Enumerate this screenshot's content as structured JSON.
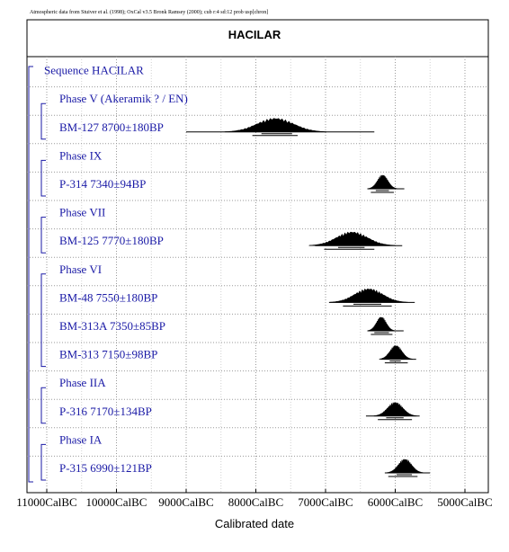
{
  "chart_data": {
    "type": "ridgeline",
    "credit": "Atmospheric data from Stuiver et al. (1998); OxCal v3.5 Bronk Ramsey (2000); cub r:4 sd:12 prob usp[chron]",
    "title": "HACILAR",
    "xlabel": "Calibrated date",
    "x_ticks": [
      "11000CalBC",
      "10000CalBC",
      "9000CalBC",
      "8000CalBC",
      "7000CalBC",
      "6000CalBC",
      "5000CalBC"
    ],
    "x_tick_values": [
      11000,
      10000,
      9000,
      8000,
      7000,
      6000,
      5000
    ],
    "xlim": [
      11000,
      5000
    ],
    "grid": true,
    "rows": [
      {
        "kind": "sequence",
        "label": "Sequence HACILAR"
      },
      {
        "kind": "phase",
        "label": "Phase V (Akeramik ? / EN)"
      },
      {
        "kind": "date",
        "label": "BM-127  8700±180BP",
        "center": 7720,
        "spread": 260,
        "range": [
          9000,
          6300
        ],
        "sigma1": [
          7920,
          7480
        ],
        "sigma2": [
          8050,
          7400
        ]
      },
      {
        "kind": "phase",
        "label": "Phase IX"
      },
      {
        "kind": "date",
        "label": "P-314  7340±94BP",
        "center": 6180,
        "spread": 75,
        "range": [
          6400,
          5870
        ],
        "sigma1": [
          6280,
          6090
        ],
        "sigma2": [
          6350,
          6020
        ]
      },
      {
        "kind": "phase",
        "label": "Phase VII"
      },
      {
        "kind": "date",
        "label": "BM-125  7770±180BP",
        "center": 6620,
        "spread": 220,
        "range": [
          7150,
          5900
        ],
        "sigma1": [
          6820,
          6440
        ],
        "sigma2": [
          7020,
          6300
        ]
      },
      {
        "kind": "phase",
        "label": "Phase VI"
      },
      {
        "kind": "date",
        "label": "BM-48  7550±180BP",
        "center": 6380,
        "spread": 200,
        "range": [
          6950,
          5720
        ],
        "sigma1": [
          6600,
          6200
        ],
        "sigma2": [
          6750,
          6050
        ]
      },
      {
        "kind": "date",
        "label": "BM-313A  7350±85BP",
        "center": 6200,
        "spread": 70,
        "range": [
          6400,
          5880
        ],
        "sigma1": [
          6300,
          6090
        ],
        "sigma2": [
          6350,
          6040
        ]
      },
      {
        "kind": "date",
        "label": "BM-313  7150±98BP",
        "center": 5990,
        "spread": 85,
        "range": [
          6200,
          5700
        ],
        "sigma1": [
          6080,
          5920
        ],
        "sigma2": [
          6150,
          5820
        ]
      },
      {
        "kind": "phase",
        "label": "Phase IIA"
      },
      {
        "kind": "date",
        "label": "P-316  7170±134BP",
        "center": 6000,
        "spread": 110,
        "range": [
          6420,
          5650
        ],
        "sigma1": [
          6130,
          5880
        ],
        "sigma2": [
          6250,
          5760
        ]
      },
      {
        "kind": "phase",
        "label": "Phase IA"
      },
      {
        "kind": "date",
        "label": "P-315  6990±121BP",
        "center": 5860,
        "spread": 95,
        "range": [
          6150,
          5500
        ],
        "sigma1": [
          5980,
          5760
        ],
        "sigma2": [
          6100,
          5680
        ]
      }
    ]
  }
}
